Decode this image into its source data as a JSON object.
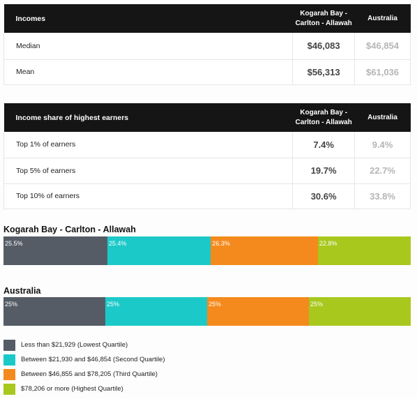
{
  "incomes": {
    "header": {
      "label": "Incomes",
      "col1": "Kogarah Bay -\nCarlton - Allawah",
      "col1_line1": "Kogarah Bay -",
      "col1_line2": "Carlton - Allawah",
      "col2": "Australia"
    },
    "rows": [
      {
        "label": "Median",
        "local": "$46,083",
        "australia": "$46,854"
      },
      {
        "label": "Mean",
        "local": "$56,313",
        "australia": "$61,036"
      }
    ]
  },
  "income_share": {
    "header": {
      "label": "Income share of highest earners",
      "col1_line1": "Kogarah Bay -",
      "col1_line2": "Carlton - Allawah",
      "col2": "Australia"
    },
    "rows": [
      {
        "label": "Top 1% of earners",
        "local": "7.4%",
        "australia": "9.4%"
      },
      {
        "label": "Top 5% of earners",
        "local": "19.7%",
        "australia": "22.7%"
      },
      {
        "label": "Top 10% of earners",
        "local": "30.6%",
        "australia": "33.8%"
      }
    ]
  },
  "colors": {
    "q1": "#565c66",
    "q2": "#1cc9c9",
    "q3": "#f48a1d",
    "q4": "#a8c81d"
  },
  "chart_data": [
    {
      "type": "bar",
      "title": "Kogarah Bay - Carlton - Allawah",
      "stacked": true,
      "orientation": "horizontal",
      "series": [
        {
          "name": "Less than $21,929 (Lowest Quartile)",
          "value": 25.5,
          "label": "25.5%"
        },
        {
          "name": "Between $21,930 and $46,854 (Second Quartile)",
          "value": 25.4,
          "label": "25.4%"
        },
        {
          "name": "Between $46,855 and $78,205 (Third Quartile)",
          "value": 26.3,
          "label": "26.3%"
        },
        {
          "name": "$78,206 or more (Highest Quartile)",
          "value": 22.8,
          "label": "22.8%"
        }
      ]
    },
    {
      "type": "bar",
      "title": "Australia",
      "stacked": true,
      "orientation": "horizontal",
      "series": [
        {
          "name": "Less than $21,929 (Lowest Quartile)",
          "value": 25,
          "label": "25%"
        },
        {
          "name": "Between $21,930 and $46,854 (Second Quartile)",
          "value": 25,
          "label": "25%"
        },
        {
          "name": "Between $46,855 and $78,205 (Third Quartile)",
          "value": 25,
          "label": "25%"
        },
        {
          "name": "$78,206 or more (Highest Quartile)",
          "value": 25,
          "label": "25%"
        }
      ]
    }
  ],
  "legend": [
    {
      "label": "Less than $21,929 (Lowest Quartile)",
      "color": "#565c66"
    },
    {
      "label": "Between $21,930 and $46,854 (Second Quartile)",
      "color": "#1cc9c9"
    },
    {
      "label": "Between $46,855 and $78,205 (Third Quartile)",
      "color": "#f48a1d"
    },
    {
      "label": "$78,206 or more (Highest Quartile)",
      "color": "#a8c81d"
    }
  ]
}
